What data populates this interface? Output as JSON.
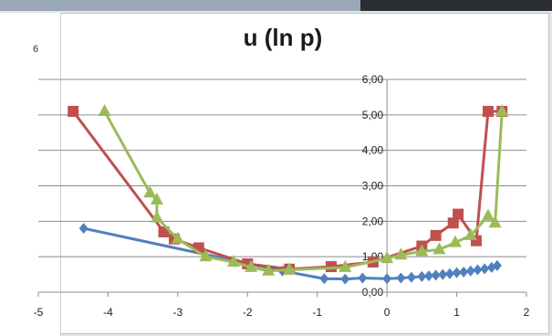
{
  "page": {
    "number": "6"
  },
  "chart_data": {
    "type": "line",
    "title": "u (ln p)",
    "xlabel": "",
    "ylabel": "",
    "xlim": [
      -5,
      2
    ],
    "ylim": [
      0,
      6
    ],
    "x_ticks": [
      "-5",
      "-4",
      "-3",
      "-2",
      "-1",
      "0",
      "1",
      "2"
    ],
    "y_ticks": [
      "0,00",
      "1,00",
      "2,00",
      "3,00",
      "4,00",
      "5,00",
      "6,00"
    ],
    "grid": "horizontal",
    "legend": "none",
    "series": [
      {
        "color": "#4f81bd",
        "marker": "diamond",
        "points": [
          [
            -4.35,
            1.8
          ],
          [
            -1.5,
            0.6
          ],
          [
            -0.9,
            0.38
          ],
          [
            -0.6,
            0.37
          ],
          [
            -0.35,
            0.4
          ],
          [
            0,
            0.38
          ],
          [
            0.2,
            0.4
          ],
          [
            0.35,
            0.42
          ],
          [
            0.5,
            0.44
          ],
          [
            0.6,
            0.46
          ],
          [
            0.7,
            0.48
          ],
          [
            0.8,
            0.5
          ],
          [
            0.9,
            0.52
          ],
          [
            1.0,
            0.55
          ],
          [
            1.1,
            0.57
          ],
          [
            1.2,
            0.6
          ],
          [
            1.3,
            0.63
          ],
          [
            1.4,
            0.66
          ],
          [
            1.5,
            0.7
          ],
          [
            1.58,
            0.75
          ]
        ]
      },
      {
        "color": "#c0504d",
        "marker": "square",
        "points": [
          [
            -4.5,
            5.1
          ],
          [
            -3.2,
            1.7
          ],
          [
            -3.05,
            1.5
          ],
          [
            -2.7,
            1.25
          ],
          [
            -2.0,
            0.8
          ],
          [
            -1.4,
            0.65
          ],
          [
            -0.8,
            0.72
          ],
          [
            -0.2,
            0.85
          ],
          [
            0.5,
            1.3
          ],
          [
            0.7,
            1.6
          ],
          [
            0.95,
            1.95
          ],
          [
            1.02,
            2.2
          ],
          [
            1.28,
            1.45
          ],
          [
            1.45,
            5.1
          ],
          [
            1.65,
            5.1
          ]
        ]
      },
      {
        "color": "#9bbb59",
        "marker": "triangle",
        "points": [
          [
            -4.05,
            5.1
          ],
          [
            -3.4,
            2.8
          ],
          [
            -3.3,
            2.6
          ],
          [
            -3.3,
            2.1
          ],
          [
            -3.0,
            1.5
          ],
          [
            -2.6,
            1.0
          ],
          [
            -2.2,
            0.85
          ],
          [
            -1.95,
            0.7
          ],
          [
            -1.7,
            0.6
          ],
          [
            -1.4,
            0.63
          ],
          [
            -0.6,
            0.7
          ],
          [
            0.0,
            0.95
          ],
          [
            0.2,
            1.05
          ],
          [
            0.5,
            1.15
          ],
          [
            0.75,
            1.2
          ],
          [
            0.98,
            1.4
          ],
          [
            1.2,
            1.6
          ],
          [
            1.45,
            2.15
          ],
          [
            1.55,
            1.95
          ],
          [
            1.65,
            5.1
          ]
        ]
      }
    ]
  }
}
